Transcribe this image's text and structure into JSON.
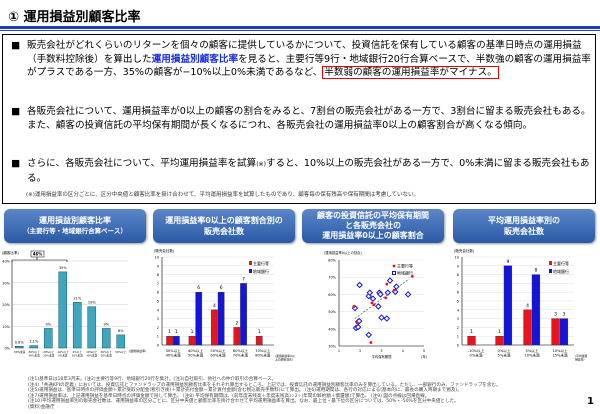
{
  "title": "① 運用損益別顧客比率",
  "bullets": {
    "b1_a": "販売会社がどれくらいのリターンを個々の顧客に提供しているかについて、投資信託を保有している顧客の基準日時点の運用損益（手数料控除後）を算出した",
    "b1_link": "運用損益別顧客比率",
    "b1_b": "を見ると、主要行等9行・地域銀行20行合算ベースで、半数強の顧客の運用損益率がプラスである一方、35%の顧客が−10%以上0%未満であるなど、",
    "b1_red": "半数弱の顧客の運用損益率がマイナス。",
    "b2": "各販売会社について、運用損益率が0以上の顧客の割合をみると、7割台の販売会社がある一方で、3割台に留まる販売会社もある。また、顧客の投資信託の平均保有期間が長くなるにつれ、各販売会社の運用損益率0以上の顧客割合が高くなる傾向。",
    "b3_a": "さらに、各販売会社について、平均運用損益率を試算",
    "b3_mark": "(※)",
    "b3_b": "すると、10%以上の販売会社がある一方で、0%未満に留まる販売会社もある。",
    "bullet_mark": "■",
    "note": "(※)運用損益率の区分ごとに、区分中央値と顧客比率を掛け合わせて、平均運用損益率を試算したものであり、顧客毎の保有残高や保有期間は考慮していない。"
  },
  "headers": [
    {
      "line1": "運用損益別顧客比率",
      "line2": "（主要行等・地域銀行合算ベース）"
    },
    {
      "line1": "運用損益率0以上の顧客割合別の",
      "line2": "販売会社数"
    },
    {
      "line1": "顧客の投資信託の平均保有期間",
      "line2": "と各販売会社の",
      "line3": "運用損益率0以上の顧客割合"
    },
    {
      "line1": "平均運用損益率別の",
      "line2": "販売会社数"
    }
  ],
  "colors": {
    "major": "#e8141b",
    "regional": "#1414e0",
    "teal": "#3fa6c0",
    "header": "#3a6ab5"
  },
  "chart_data": [
    {
      "type": "bar",
      "ylabel": "(顧客比率)",
      "xlabel": "(運用損益率)",
      "ylim": [
        0,
        40
      ],
      "yticks": [
        "0%",
        "10%",
        "20%",
        "30%",
        "40%"
      ],
      "categories": [
        "-50%未満",
        "-50%以上-30%未満",
        "-30%以上-10%未満",
        "-10%以上0%未満",
        "0%以上10%未満",
        "10%以上30%未満",
        "30%以上50%未満",
        "50%以上"
      ],
      "values": [
        0.8,
        1.1,
        9,
        35,
        21,
        19,
        9,
        6
      ],
      "labels": [
        "0.8%",
        "1.1%",
        "9%",
        "35%",
        "21%",
        "19%",
        "9%",
        "6%"
      ],
      "bracket_label": "46%"
    },
    {
      "type": "bar",
      "ylabel": "(販売会社数)",
      "xlabel": "(運用損益率0以上の顧客割合)",
      "ylim": [
        0,
        10
      ],
      "categories": [
        "30%以上40%未満",
        "40%以上50%未満",
        "50%以上60%未満",
        "60%以上70%未満",
        "70%以上80%未満"
      ],
      "series": [
        {
          "name": "主要行等",
          "values": [
            1,
            1,
            4,
            2,
            1
          ]
        },
        {
          "name": "地域銀行",
          "values": [
            1,
            6,
            6,
            7,
            0
          ]
        }
      ]
    },
    {
      "type": "scatter",
      "ylabel": "(運用損益率0以上の割合)",
      "xlabel": "平均保有期間",
      "xunit": "(年)",
      "xlim": [
        1,
        5
      ],
      "ylim": [
        30,
        80
      ],
      "xticks": [
        "1",
        "2",
        "3",
        "4",
        "5"
      ],
      "yticks": [
        "30%",
        "40%",
        "50%",
        "60%",
        "70%",
        "80%"
      ],
      "series": [
        {
          "name": "主要行等",
          "points": [
            [
              1.7,
              53
            ],
            [
              1.85,
              43.5
            ],
            [
              2.5,
              32
            ],
            [
              2.55,
              55
            ],
            [
              2.65,
              54
            ],
            [
              3.2,
              58
            ],
            [
              3.25,
              66
            ],
            [
              3.6,
              62.5
            ],
            [
              4.45,
              70.5
            ]
          ]
        },
        {
          "name": "地域銀行",
          "points": [
            [
              1.75,
              52
            ],
            [
              1.8,
              40.5
            ],
            [
              1.9,
              41
            ],
            [
              1.9,
              44
            ],
            [
              1.95,
              44.5
            ],
            [
              1.97,
              65.5
            ],
            [
              2.4,
              36.5
            ],
            [
              2.4,
              59
            ],
            [
              2.45,
              61
            ],
            [
              2.6,
              57.5
            ],
            [
              2.85,
              53
            ],
            [
              2.9,
              61
            ],
            [
              2.95,
              60
            ],
            [
              3.0,
              46.5
            ],
            [
              3.25,
              46
            ],
            [
              3.3,
              61
            ],
            [
              3.4,
              68
            ],
            [
              3.65,
              61.5
            ],
            [
              3.7,
              64.5
            ],
            [
              4.25,
              60
            ]
          ]
        }
      ],
      "trendline": [
        [
          1.75,
          46
        ],
        [
          4.3,
          69
        ]
      ]
    },
    {
      "type": "bar",
      "ylabel": "(販売会社数)",
      "xlabel": "(平均運用損益率)",
      "ylim": [
        0,
        10
      ],
      "categories": [
        "-10%以上0%未満",
        "0%以上5%未満",
        "5%以上10%未満",
        "10%以上15%未満"
      ],
      "series": [
        {
          "name": "主要行等",
          "values": [
            1,
            1,
            4,
            3
          ]
        },
        {
          "name": "地域銀行",
          "values": [
            0,
            9,
            8,
            3
          ]
        }
      ]
    }
  ],
  "footnotes": [
    "(注1)基準日は18年3月末。(注2)主要行等9行、地域銀行20行を集計。(注3)自社取引、他社への仲介取引の合算ベース。",
    "(注4)「共通KPIの定義」においては、投資信託とファンドラップの運用損益別顧客比率をそれぞれ算出するところ、上記では、投資信託の運用損益別顧客比率のみを算出している。ただし、一部銀行のみ、ファンドラップを含む。",
    "(注5)運用損益は、基準日時点の評価金額＋累計受取分配金(税引き後)＋累計売付金額－累計買付金額(含む税込販売手数料)にて算出。 (注6)運用期間は、各行の対応による(基本的に、最長の購入時期まで遡及)。",
    "(注7)運用損益率は、上記運用損益を基準日時点の評価金額で除して算出。 (注8) 平均保有期間は、(前年度末残高＋年度末残高)÷2÷(年間の解約額＋償還額)で算出。 (注9) 図の点線は回帰直線。",
    "(注10)平均運用損益率別の販売会社数は、運用損益率の区分ごとに、区分中央値と顧客比率を掛け合わせて平均運用損益率を算出。なお、最上位・最下位の区分については、50%・-50%を区分中央値とした。",
    "(資料)金融庁"
  ],
  "page_number": "1"
}
